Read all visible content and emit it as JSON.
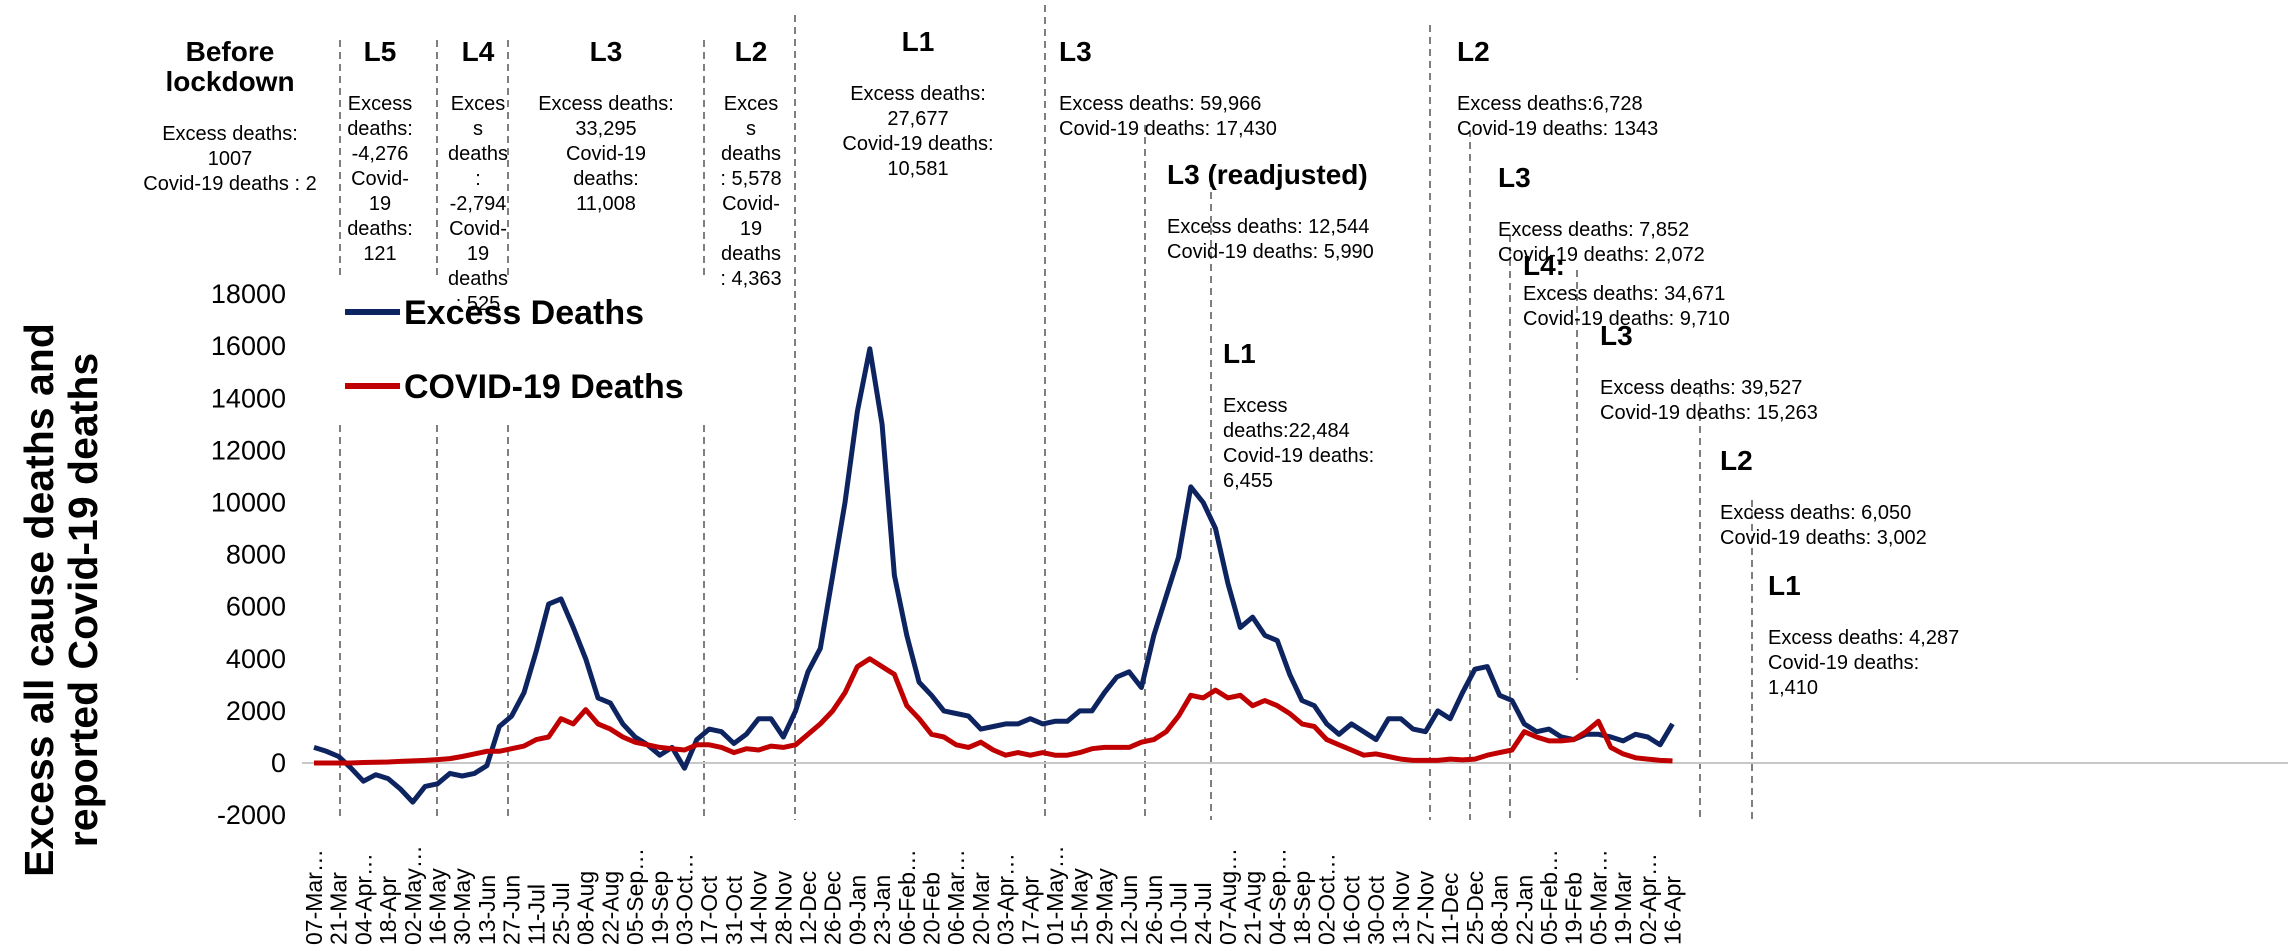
{
  "chart_data": {
    "type": "line",
    "ylabel_lines": [
      "Excess all cause deaths and",
      "reported Covid-19 deaths"
    ],
    "xlabel": "",
    "ylim": [
      -2000,
      18000
    ],
    "yticks": [
      "-2000",
      "0",
      "2000",
      "4000",
      "6000",
      "8000",
      "10000",
      "12000",
      "14000",
      "16000",
      "18000"
    ],
    "ytick_values": [
      -2000,
      0,
      2000,
      4000,
      6000,
      8000,
      10000,
      12000,
      14000,
      16000,
      18000
    ],
    "x_tick_labels": [
      "07-Mar…",
      "21-Mar",
      "04-Apr…",
      "18-Apr",
      "02-May…",
      "16-May",
      "30-May",
      "13-Jun",
      "27-Jun",
      "11-Jul",
      "25-Jul",
      "08-Aug",
      "22-Aug",
      "05-Sep…",
      "19-Sep",
      "03-Oct…",
      "17-Oct",
      "31-Oct",
      "14-Nov",
      "28-Nov",
      "12-Dec",
      "26-Dec",
      "09-Jan",
      "23-Jan",
      "06-Feb…",
      "20-Feb",
      "06-Mar…",
      "20-Mar",
      "03-Apr…",
      "17-Apr",
      "01-May…",
      "15-May",
      "29-May",
      "12-Jun",
      "26-Jun",
      "10-Jul",
      "24-Jul",
      "07-Aug…",
      "21-Aug",
      "04-Sep…",
      "18-Sep",
      "02-Oct…",
      "16-Oct",
      "30-Oct",
      "13-Nov",
      "27-Nov",
      "11-Dec",
      "25-Dec",
      "08-Jan",
      "22-Jan",
      "05-Feb…",
      "19-Feb",
      "05-Mar…",
      "19-Mar",
      "02-Apr…",
      "16-Apr"
    ],
    "grid": false,
    "legend_position": "top-left",
    "series": [
      {
        "name": "Excess Deaths",
        "color": "#0d2461",
        "values": [
          600,
          450,
          250,
          -200,
          -700,
          -450,
          -600,
          -1000,
          -1500,
          -900,
          -800,
          -400,
          -500,
          -400,
          -100,
          1400,
          1800,
          2700,
          4300,
          6100,
          6300,
          5200,
          4000,
          2500,
          2300,
          1500,
          1000,
          700,
          300,
          600,
          -200,
          900,
          1300,
          1200,
          750,
          1100,
          1700,
          1700,
          1000,
          2000,
          3500,
          4400,
          7200,
          10000,
          13500,
          15900,
          13000,
          7200,
          4900,
          3100,
          2600,
          2000,
          1900,
          1800,
          1300,
          1400,
          1500,
          1500,
          1700,
          1500,
          1600,
          1600,
          2000,
          2000,
          2700,
          3300,
          3500,
          2900,
          4900,
          6400,
          7900,
          10600,
          10000,
          9000,
          6900,
          5200,
          5600,
          4900,
          4700,
          3400,
          2400,
          2200,
          1500,
          1100,
          1500,
          1200,
          900,
          1700,
          1700,
          1300,
          1200,
          2000,
          1700,
          2700,
          3600,
          3700,
          2600,
          2400,
          1500,
          1200,
          1300,
          1000,
          900,
          1100,
          1100,
          1000,
          850,
          1100,
          1000,
          700,
          1500,
          1100
        ],
        "xs": [
          0,
          0.5,
          1,
          1.5,
          2,
          2.5,
          3,
          3.5,
          4,
          4.5,
          5,
          5.5,
          6,
          6.5,
          7,
          7.5,
          8,
          8.5,
          9,
          9.5,
          10,
          10.5,
          11,
          11.5,
          12,
          12.5,
          13,
          13.5,
          14,
          14.5,
          15,
          15.5,
          16,
          16.5,
          17,
          17.5,
          18,
          18.5,
          19,
          19.5,
          20,
          20.5,
          21,
          21.5,
          22,
          22.5,
          23,
          23.5,
          24,
          24.5,
          25,
          25.5,
          26,
          26.5,
          27,
          27.5,
          28,
          28.5,
          29,
          29.5,
          30,
          30.5,
          31,
          31.5,
          32,
          32.5,
          33,
          33.5,
          34,
          34.5,
          35,
          35.5,
          36,
          36.5,
          37,
          37.5,
          38,
          38.5,
          39,
          39.5,
          40,
          40.5,
          41,
          41.5,
          42,
          42.5,
          43,
          43.5,
          44,
          44.5,
          45,
          45.5,
          46,
          46.5,
          47,
          47.5,
          48,
          48.5,
          49,
          49.5,
          50,
          50.5,
          51,
          51.5,
          52,
          52.5,
          53,
          53.5,
          54,
          54.5,
          55
        ]
      },
      {
        "name": "COVID-19 Deaths",
        "color": "#c00000",
        "values": [
          0,
          0,
          0,
          0,
          20,
          30,
          40,
          60,
          80,
          100,
          130,
          170,
          250,
          350,
          450,
          450,
          550,
          650,
          900,
          1000,
          1700,
          1500,
          2050,
          1500,
          1300,
          1000,
          800,
          700,
          600,
          550,
          500,
          700,
          700,
          600,
          400,
          550,
          500,
          650,
          600,
          700,
          1100,
          1500,
          2000,
          2700,
          3700,
          4000,
          3700,
          3400,
          2200,
          1700,
          1100,
          1000,
          700,
          600,
          800,
          500,
          300,
          400,
          300,
          400,
          300,
          300,
          400,
          550,
          600,
          600,
          600,
          800,
          900,
          1200,
          1800,
          2600,
          2500,
          2800,
          2500,
          2600,
          2200,
          2400,
          2200,
          1900,
          1500,
          1400,
          900,
          700,
          500,
          300,
          350,
          250,
          150,
          100,
          100,
          100,
          150,
          120,
          150,
          300,
          400,
          500,
          1200,
          1000,
          850,
          850,
          900,
          1200,
          1600,
          600,
          350,
          200,
          150,
          100,
          80,
          60,
          50,
          80,
          150
        ],
        "xs": [
          0,
          0.5,
          1,
          1.5,
          2,
          2.5,
          3,
          3.5,
          4,
          4.5,
          5,
          5.5,
          6,
          6.5,
          7,
          7.5,
          8,
          8.5,
          9,
          9.5,
          10,
          10.5,
          11,
          11.5,
          12,
          12.5,
          13,
          13.5,
          14,
          14.5,
          15,
          15.5,
          16,
          16.5,
          17,
          17.5,
          18,
          18.5,
          19,
          19.5,
          20,
          20.5,
          21,
          21.5,
          22,
          22.5,
          23,
          23.5,
          24,
          24.5,
          25,
          25.5,
          26,
          26.5,
          27,
          27.5,
          28,
          28.5,
          29,
          29.5,
          30,
          30.5,
          31,
          31.5,
          32,
          32.5,
          33,
          33.5,
          34,
          34.5,
          35,
          35.5,
          36,
          36.5,
          37,
          37.5,
          38,
          38.5,
          39,
          39.5,
          40,
          40.5,
          41,
          41.5,
          42,
          42.5,
          43,
          43.5,
          44,
          44.5,
          45,
          45.5,
          46,
          46.5,
          47,
          47.5,
          48,
          48.5,
          49,
          49.5,
          50,
          50.5,
          51,
          51.5,
          52,
          52.5,
          53,
          53.5,
          54,
          54.5,
          55
        ]
      }
    ],
    "annotations": [
      {
        "id": "before",
        "title": "Before\nlockdown",
        "body": "Excess deaths:\n1007\nCovid-19 deaths : 2"
      },
      {
        "id": "l5",
        "title": "L5",
        "body": "Excess\ndeaths:\n-4,276\nCovid-\n19\ndeaths:\n121"
      },
      {
        "id": "l4a",
        "title": "L4",
        "body": "Exces\ns\ndeaths\n:\n-2,794\nCovid-\n19\ndeaths\n: 525"
      },
      {
        "id": "l3a",
        "title": "L3",
        "body": "Excess deaths:\n33,295\nCovid-19\ndeaths:\n11,008"
      },
      {
        "id": "l2a",
        "title": "L2",
        "body": "Exces\ns\ndeaths\n: 5,578\nCovid-\n19\ndeaths\n: 4,363"
      },
      {
        "id": "l1a",
        "title": "L1",
        "body": "Excess deaths:\n27,677\nCovid-19 deaths:\n10,581"
      },
      {
        "id": "l3b",
        "title": "L3",
        "body": "Excess deaths: 59,966\nCovid-19 deaths: 17,430"
      },
      {
        "id": "l3r",
        "title": "L3 (readjusted)",
        "body": "Excess deaths: 12,544\nCovid-19 deaths: 5,990"
      },
      {
        "id": "l1b",
        "title": "L1",
        "body": "Excess\ndeaths:22,484\nCovid-19 deaths:\n6,455"
      },
      {
        "id": "l2b",
        "title": "L2",
        "body": "Excess deaths:6,728\nCovid-19 deaths: 1343"
      },
      {
        "id": "l3c",
        "title": "L3",
        "body": "Excess deaths: 7,852\nCovid-19 deaths: 2,072"
      },
      {
        "id": "l4b",
        "title": "L4:",
        "body": "Excess deaths: 34,671\nCovid-19 deaths: 9,710"
      },
      {
        "id": "l3d",
        "title": "L3",
        "body": "Excess deaths: 39,527\nCovid-19 deaths: 15,263"
      },
      {
        "id": "l2c",
        "title": "L2",
        "body": "Excess deaths: 6,050\nCovid-19 deaths: 3,002"
      },
      {
        "id": "l1c",
        "title": "L1",
        "body": "Excess deaths: 4,287\nCovid-19 deaths:\n1,410"
      }
    ]
  }
}
